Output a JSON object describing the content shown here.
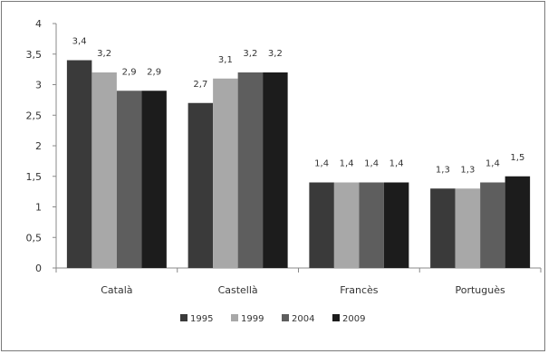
{
  "chart_data": {
    "type": "bar",
    "categories": [
      "Català",
      "Castellà",
      "Francès",
      "Portuguès"
    ],
    "series": [
      {
        "name": "1995",
        "values": [
          3.4,
          2.7,
          1.4,
          1.3
        ],
        "color": "#3a3a3a"
      },
      {
        "name": "1999",
        "values": [
          3.2,
          3.1,
          1.4,
          1.3
        ],
        "color": "#a8a8a8"
      },
      {
        "name": "2004",
        "values": [
          2.9,
          3.2,
          1.4,
          1.4
        ],
        "color": "#5e5e5e"
      },
      {
        "name": "2009",
        "values": [
          2.9,
          3.2,
          1.4,
          1.5
        ],
        "color": "#1c1c1c"
      }
    ],
    "ylim": [
      0,
      4
    ],
    "yticks": [
      "0",
      "0,5",
      "1",
      "1,5",
      "2",
      "2,5",
      "3",
      "3,5",
      "4"
    ],
    "decimal_separator": ",",
    "grid": false,
    "legend_position": "bottom"
  }
}
